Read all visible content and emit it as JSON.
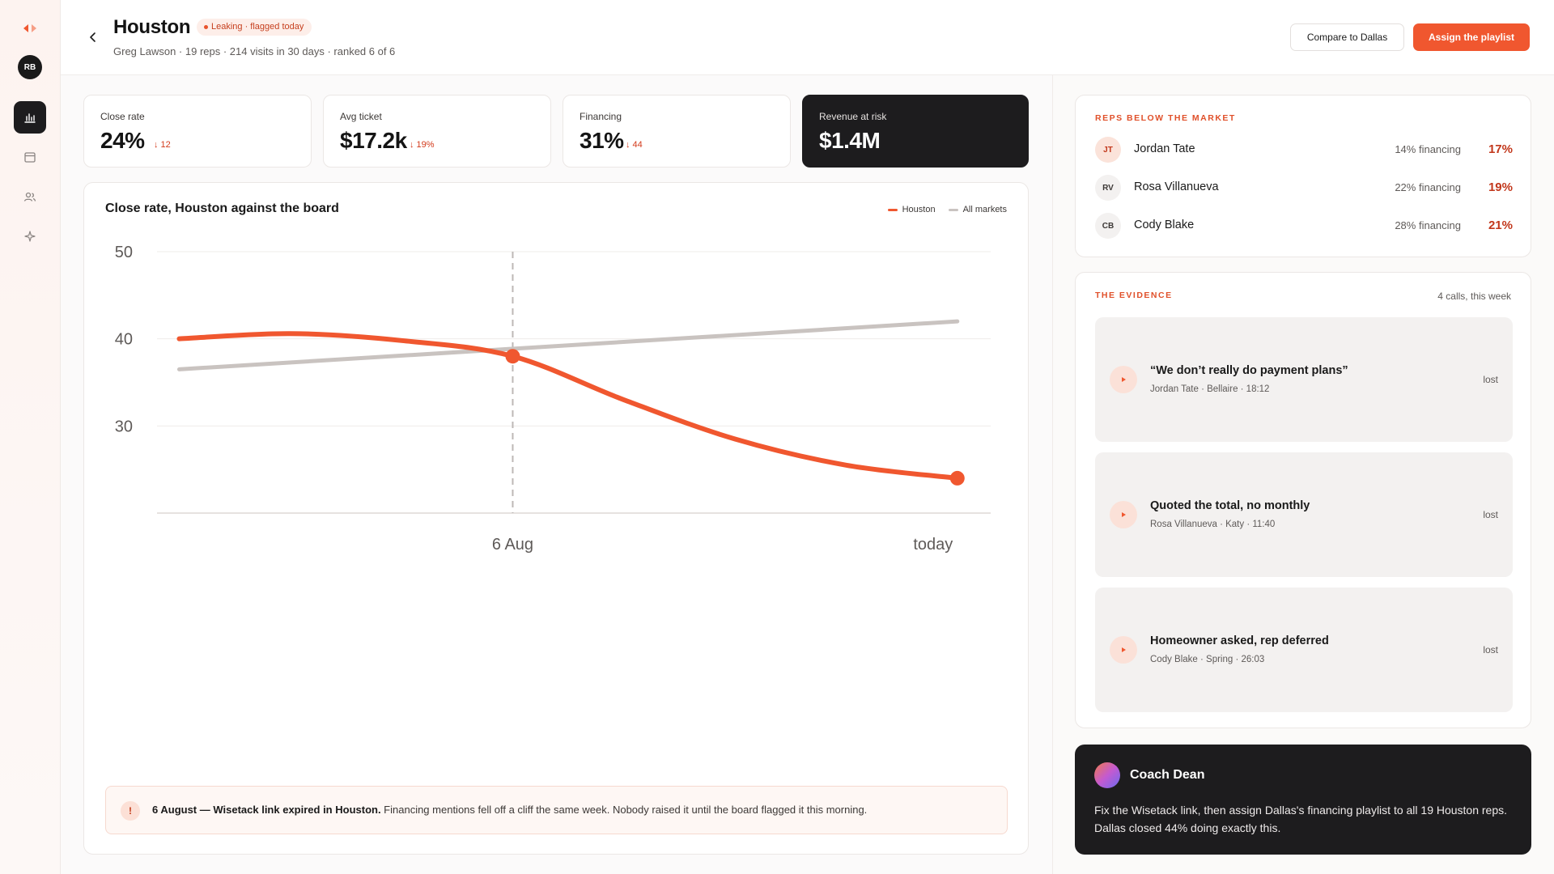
{
  "sidebar": {
    "avatar_initials": "RB",
    "items": [
      {
        "icon": "bar-chart-icon",
        "active": true
      },
      {
        "icon": "calendar-icon",
        "active": false
      },
      {
        "icon": "users-icon",
        "active": false
      },
      {
        "icon": "sparkle-icon",
        "active": false
      }
    ]
  },
  "header": {
    "title": "Houston",
    "badge": "Leaking · flagged today",
    "subtitle": "Greg Lawson · 19 reps · 214 visits in 30 days · ranked 6 of 6",
    "compare_label": "Compare to Dallas",
    "assign_label": "Assign the playlist"
  },
  "kpis": [
    {
      "label": "Close rate",
      "value": "24%",
      "delta": "↓ 12"
    },
    {
      "label": "Avg ticket",
      "value": "$17.2k",
      "delta": "↓ 19%"
    },
    {
      "label": "Financing",
      "value": "31%",
      "delta": "↓ 44"
    },
    {
      "label": "Revenue at risk",
      "value": "$1.4M"
    }
  ],
  "chart": {
    "title": "Close rate, Houston against the board",
    "legend": [
      "Houston",
      "All markets"
    ],
    "alert_bold": "6 August — Wisetack link expired in Houston.",
    "alert_text": " Financing mentions fell off a cliff the same week. Nobody raised it until the board flagged it this morning."
  },
  "chart_data": {
    "type": "line",
    "x": [
      0,
      1,
      2,
      3,
      4,
      5,
      6,
      7
    ],
    "x_tick_labels": [
      {
        "x": 3,
        "label": "6 Aug"
      },
      {
        "x": 7,
        "label": "today"
      }
    ],
    "series": [
      {
        "name": "Houston",
        "color": "#f0572f",
        "values": [
          40,
          40.6,
          39.8,
          38,
          33,
          28.5,
          25.5,
          24
        ]
      },
      {
        "name": "All markets",
        "color": "#c9c3c0",
        "points": [
          [
            0,
            36.5
          ],
          [
            7,
            42
          ]
        ]
      }
    ],
    "markers": [
      {
        "x": 3,
        "y": 38
      },
      {
        "x": 7,
        "y": 24
      }
    ],
    "vline_x": 3,
    "yticks": [
      30,
      40,
      50
    ],
    "ylim": [
      20,
      50
    ],
    "xlim": [
      -0.2,
      7.3
    ],
    "grid": true
  },
  "reps": {
    "heading": "REPS BELOW THE MARKET",
    "rows": [
      {
        "initials": "JT",
        "name": "Jordan Tate",
        "financing": "14% financing",
        "rate": "17%",
        "av_bg": "#fbe3da",
        "av_fg": "#c2371b"
      },
      {
        "initials": "RV",
        "name": "Rosa Villanueva",
        "financing": "22% financing",
        "rate": "19%",
        "av_bg": "#f3f1f0",
        "av_fg": "#3c3836"
      },
      {
        "initials": "CB",
        "name": "Cody Blake",
        "financing": "28% financing",
        "rate": "21%",
        "av_bg": "#f3f1f0",
        "av_fg": "#3c3836"
      }
    ]
  },
  "evidence": {
    "heading": "THE EVIDENCE",
    "count": "4 calls, this week",
    "calls": [
      {
        "title": "“We don’t really do payment plans”",
        "meta": "Jordan Tate · Bellaire · 18:12",
        "status": "lost"
      },
      {
        "title": "Quoted the total, no monthly",
        "meta": "Rosa Villanueva · Katy · 11:40",
        "status": "lost"
      },
      {
        "title": "Homeowner asked, rep deferred",
        "meta": "Cody Blake · Spring · 26:03",
        "status": "lost"
      }
    ]
  },
  "coach": {
    "name": "Coach Dean",
    "message": "Fix the Wisetack link, then assign Dallas's financing playlist to all 19 Houston reps. Dallas closed 44% doing exactly this."
  }
}
